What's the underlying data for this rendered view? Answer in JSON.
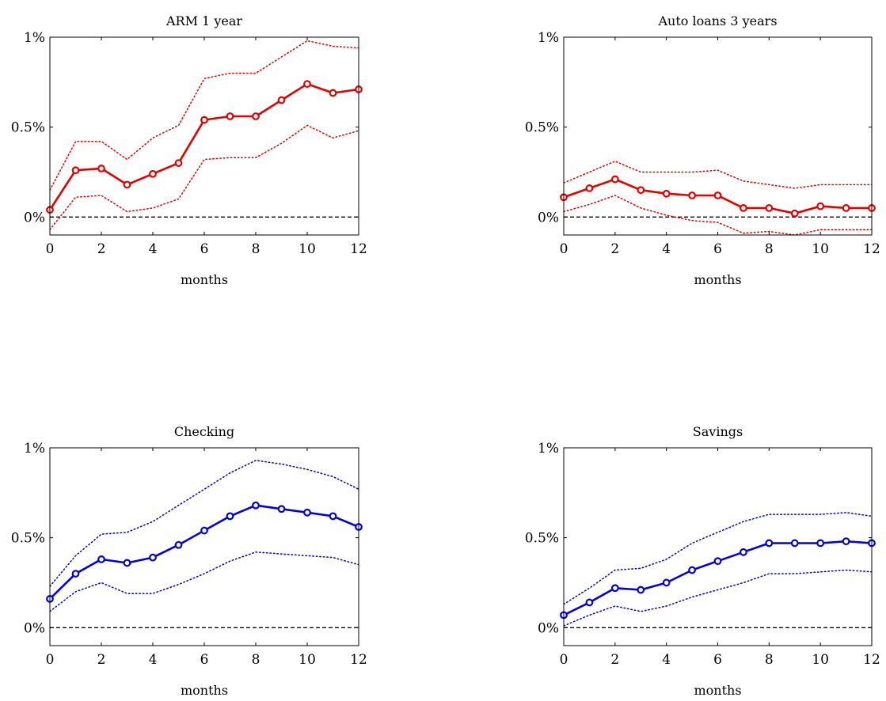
{
  "colors": {
    "red": "#e50000",
    "blue": "#0000e0",
    "axis": "#000000",
    "zero_line": "#000000"
  },
  "chart_data": [
    {
      "type": "line",
      "title": "ARM 1 year",
      "xlabel": "months",
      "ylabel": "",
      "x": [
        0,
        1,
        2,
        3,
        4,
        5,
        6,
        7,
        8,
        9,
        10,
        11,
        12
      ],
      "xlim": [
        0,
        12
      ],
      "ylim": [
        -0.1,
        1.0
      ],
      "x_ticks": [
        "0",
        "2",
        "4",
        "6",
        "8",
        "10",
        "12"
      ],
      "y_ticks": [
        "0%",
        "0.5%",
        "1%"
      ],
      "color": "#e50000",
      "grid": false,
      "series": [
        {
          "role": "estimate",
          "style": "solid-markers",
          "values": [
            0.04,
            0.26,
            0.27,
            0.18,
            0.24,
            0.3,
            0.54,
            0.56,
            0.56,
            0.65,
            0.74,
            0.69,
            0.71
          ]
        },
        {
          "role": "upper",
          "style": "dotted",
          "values": [
            0.15,
            0.42,
            0.42,
            0.32,
            0.44,
            0.51,
            0.77,
            0.8,
            0.8,
            0.89,
            0.98,
            0.95,
            0.94
          ]
        },
        {
          "role": "lower",
          "style": "dotted",
          "values": [
            -0.07,
            0.11,
            0.12,
            0.03,
            0.05,
            0.1,
            0.32,
            0.33,
            0.33,
            0.41,
            0.51,
            0.44,
            0.48
          ]
        }
      ],
      "reference_line": 0
    },
    {
      "type": "line",
      "title": "Auto loans 3 years",
      "xlabel": "months",
      "ylabel": "",
      "x": [
        0,
        1,
        2,
        3,
        4,
        5,
        6,
        7,
        8,
        9,
        10,
        11,
        12
      ],
      "xlim": [
        0,
        12
      ],
      "ylim": [
        -0.1,
        1.0
      ],
      "x_ticks": [
        "0",
        "2",
        "4",
        "6",
        "8",
        "10",
        "12"
      ],
      "y_ticks": [
        "0%",
        "0.5%",
        "1%"
      ],
      "color": "#e50000",
      "grid": false,
      "series": [
        {
          "role": "estimate",
          "style": "solid-markers",
          "values": [
            0.11,
            0.16,
            0.21,
            0.15,
            0.13,
            0.12,
            0.12,
            0.05,
            0.05,
            0.02,
            0.06,
            0.05,
            0.05
          ]
        },
        {
          "role": "upper",
          "style": "dotted",
          "values": [
            0.19,
            0.25,
            0.31,
            0.25,
            0.25,
            0.25,
            0.26,
            0.2,
            0.18,
            0.16,
            0.18,
            0.18,
            0.18
          ]
        },
        {
          "role": "lower",
          "style": "dotted",
          "values": [
            0.03,
            0.07,
            0.12,
            0.05,
            0.01,
            -0.02,
            -0.03,
            -0.09,
            -0.08,
            -0.1,
            -0.07,
            -0.07,
            -0.07
          ]
        }
      ],
      "reference_line": 0
    },
    {
      "type": "line",
      "title": "Checking",
      "xlabel": "months",
      "ylabel": "",
      "x": [
        0,
        1,
        2,
        3,
        4,
        5,
        6,
        7,
        8,
        9,
        10,
        11,
        12
      ],
      "xlim": [
        0,
        12
      ],
      "ylim": [
        -0.1,
        1.0
      ],
      "x_ticks": [
        "0",
        "2",
        "4",
        "6",
        "8",
        "10",
        "12"
      ],
      "y_ticks": [
        "0%",
        "0.5%",
        "1%"
      ],
      "color": "#0000e0",
      "grid": false,
      "series": [
        {
          "role": "estimate",
          "style": "solid-markers",
          "values": [
            0.16,
            0.3,
            0.38,
            0.36,
            0.39,
            0.46,
            0.54,
            0.62,
            0.68,
            0.66,
            0.64,
            0.62,
            0.56
          ]
        },
        {
          "role": "upper",
          "style": "dotted",
          "values": [
            0.23,
            0.4,
            0.52,
            0.53,
            0.59,
            0.68,
            0.77,
            0.86,
            0.93,
            0.91,
            0.88,
            0.84,
            0.77
          ]
        },
        {
          "role": "lower",
          "style": "dotted",
          "values": [
            0.09,
            0.2,
            0.25,
            0.19,
            0.19,
            0.24,
            0.3,
            0.37,
            0.42,
            0.41,
            0.4,
            0.39,
            0.35
          ]
        }
      ],
      "reference_line": 0
    },
    {
      "type": "line",
      "title": "Savings",
      "xlabel": "months",
      "ylabel": "",
      "x": [
        0,
        1,
        2,
        3,
        4,
        5,
        6,
        7,
        8,
        9,
        10,
        11,
        12
      ],
      "xlim": [
        0,
        12
      ],
      "ylim": [
        -0.1,
        1.0
      ],
      "x_ticks": [
        "0",
        "2",
        "4",
        "6",
        "8",
        "10",
        "12"
      ],
      "y_ticks": [
        "0%",
        "0.5%",
        "1%"
      ],
      "color": "#0000e0",
      "grid": false,
      "series": [
        {
          "role": "estimate",
          "style": "solid-markers",
          "values": [
            0.07,
            0.14,
            0.22,
            0.21,
            0.25,
            0.32,
            0.37,
            0.42,
            0.47,
            0.47,
            0.47,
            0.48,
            0.47
          ]
        },
        {
          "role": "upper",
          "style": "dotted",
          "values": [
            0.13,
            0.22,
            0.32,
            0.33,
            0.38,
            0.47,
            0.53,
            0.59,
            0.63,
            0.63,
            0.63,
            0.64,
            0.62
          ]
        },
        {
          "role": "lower",
          "style": "dotted",
          "values": [
            0.01,
            0.07,
            0.12,
            0.09,
            0.12,
            0.17,
            0.21,
            0.25,
            0.3,
            0.3,
            0.31,
            0.32,
            0.31
          ]
        }
      ],
      "reference_line": 0
    }
  ]
}
